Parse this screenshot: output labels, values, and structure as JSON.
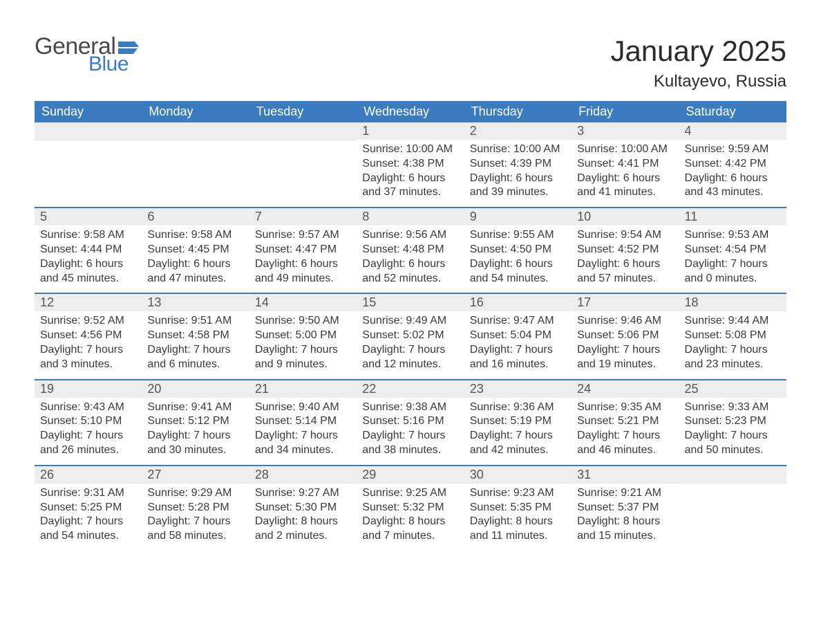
{
  "brand": {
    "word1": "General",
    "word2": "Blue",
    "flag_color": "#3b7bbf",
    "text_color_gray": "#4a4a4a"
  },
  "header": {
    "month_title": "January 2025",
    "location": "Kultayevo, Russia"
  },
  "colors": {
    "header_bg": "#3b7bbf",
    "header_text": "#ffffff",
    "daynum_bg": "#ededed",
    "week_divider": "#3b7bbf",
    "body_text": "#3a3a3a",
    "page_bg": "#ffffff"
  },
  "typography": {
    "title_fontsize": 42,
    "location_fontsize": 24,
    "weekday_fontsize": 18,
    "daynum_fontsize": 18,
    "body_fontsize": 16,
    "font_family": "Arial"
  },
  "calendar": {
    "type": "table",
    "weekdays": [
      "Sunday",
      "Monday",
      "Tuesday",
      "Wednesday",
      "Thursday",
      "Friday",
      "Saturday"
    ],
    "weeks": [
      [
        null,
        null,
        null,
        {
          "n": "1",
          "sunrise": "Sunrise: 10:00 AM",
          "sunset": "Sunset: 4:38 PM",
          "daylight": "Daylight: 6 hours and 37 minutes."
        },
        {
          "n": "2",
          "sunrise": "Sunrise: 10:00 AM",
          "sunset": "Sunset: 4:39 PM",
          "daylight": "Daylight: 6 hours and 39 minutes."
        },
        {
          "n": "3",
          "sunrise": "Sunrise: 10:00 AM",
          "sunset": "Sunset: 4:41 PM",
          "daylight": "Daylight: 6 hours and 41 minutes."
        },
        {
          "n": "4",
          "sunrise": "Sunrise: 9:59 AM",
          "sunset": "Sunset: 4:42 PM",
          "daylight": "Daylight: 6 hours and 43 minutes."
        }
      ],
      [
        {
          "n": "5",
          "sunrise": "Sunrise: 9:58 AM",
          "sunset": "Sunset: 4:44 PM",
          "daylight": "Daylight: 6 hours and 45 minutes."
        },
        {
          "n": "6",
          "sunrise": "Sunrise: 9:58 AM",
          "sunset": "Sunset: 4:45 PM",
          "daylight": "Daylight: 6 hours and 47 minutes."
        },
        {
          "n": "7",
          "sunrise": "Sunrise: 9:57 AM",
          "sunset": "Sunset: 4:47 PM",
          "daylight": "Daylight: 6 hours and 49 minutes."
        },
        {
          "n": "8",
          "sunrise": "Sunrise: 9:56 AM",
          "sunset": "Sunset: 4:48 PM",
          "daylight": "Daylight: 6 hours and 52 minutes."
        },
        {
          "n": "9",
          "sunrise": "Sunrise: 9:55 AM",
          "sunset": "Sunset: 4:50 PM",
          "daylight": "Daylight: 6 hours and 54 minutes."
        },
        {
          "n": "10",
          "sunrise": "Sunrise: 9:54 AM",
          "sunset": "Sunset: 4:52 PM",
          "daylight": "Daylight: 6 hours and 57 minutes."
        },
        {
          "n": "11",
          "sunrise": "Sunrise: 9:53 AM",
          "sunset": "Sunset: 4:54 PM",
          "daylight": "Daylight: 7 hours and 0 minutes."
        }
      ],
      [
        {
          "n": "12",
          "sunrise": "Sunrise: 9:52 AM",
          "sunset": "Sunset: 4:56 PM",
          "daylight": "Daylight: 7 hours and 3 minutes."
        },
        {
          "n": "13",
          "sunrise": "Sunrise: 9:51 AM",
          "sunset": "Sunset: 4:58 PM",
          "daylight": "Daylight: 7 hours and 6 minutes."
        },
        {
          "n": "14",
          "sunrise": "Sunrise: 9:50 AM",
          "sunset": "Sunset: 5:00 PM",
          "daylight": "Daylight: 7 hours and 9 minutes."
        },
        {
          "n": "15",
          "sunrise": "Sunrise: 9:49 AM",
          "sunset": "Sunset: 5:02 PM",
          "daylight": "Daylight: 7 hours and 12 minutes."
        },
        {
          "n": "16",
          "sunrise": "Sunrise: 9:47 AM",
          "sunset": "Sunset: 5:04 PM",
          "daylight": "Daylight: 7 hours and 16 minutes."
        },
        {
          "n": "17",
          "sunrise": "Sunrise: 9:46 AM",
          "sunset": "Sunset: 5:06 PM",
          "daylight": "Daylight: 7 hours and 19 minutes."
        },
        {
          "n": "18",
          "sunrise": "Sunrise: 9:44 AM",
          "sunset": "Sunset: 5:08 PM",
          "daylight": "Daylight: 7 hours and 23 minutes."
        }
      ],
      [
        {
          "n": "19",
          "sunrise": "Sunrise: 9:43 AM",
          "sunset": "Sunset: 5:10 PM",
          "daylight": "Daylight: 7 hours and 26 minutes."
        },
        {
          "n": "20",
          "sunrise": "Sunrise: 9:41 AM",
          "sunset": "Sunset: 5:12 PM",
          "daylight": "Daylight: 7 hours and 30 minutes."
        },
        {
          "n": "21",
          "sunrise": "Sunrise: 9:40 AM",
          "sunset": "Sunset: 5:14 PM",
          "daylight": "Daylight: 7 hours and 34 minutes."
        },
        {
          "n": "22",
          "sunrise": "Sunrise: 9:38 AM",
          "sunset": "Sunset: 5:16 PM",
          "daylight": "Daylight: 7 hours and 38 minutes."
        },
        {
          "n": "23",
          "sunrise": "Sunrise: 9:36 AM",
          "sunset": "Sunset: 5:19 PM",
          "daylight": "Daylight: 7 hours and 42 minutes."
        },
        {
          "n": "24",
          "sunrise": "Sunrise: 9:35 AM",
          "sunset": "Sunset: 5:21 PM",
          "daylight": "Daylight: 7 hours and 46 minutes."
        },
        {
          "n": "25",
          "sunrise": "Sunrise: 9:33 AM",
          "sunset": "Sunset: 5:23 PM",
          "daylight": "Daylight: 7 hours and 50 minutes."
        }
      ],
      [
        {
          "n": "26",
          "sunrise": "Sunrise: 9:31 AM",
          "sunset": "Sunset: 5:25 PM",
          "daylight": "Daylight: 7 hours and 54 minutes."
        },
        {
          "n": "27",
          "sunrise": "Sunrise: 9:29 AM",
          "sunset": "Sunset: 5:28 PM",
          "daylight": "Daylight: 7 hours and 58 minutes."
        },
        {
          "n": "28",
          "sunrise": "Sunrise: 9:27 AM",
          "sunset": "Sunset: 5:30 PM",
          "daylight": "Daylight: 8 hours and 2 minutes."
        },
        {
          "n": "29",
          "sunrise": "Sunrise: 9:25 AM",
          "sunset": "Sunset: 5:32 PM",
          "daylight": "Daylight: 8 hours and 7 minutes."
        },
        {
          "n": "30",
          "sunrise": "Sunrise: 9:23 AM",
          "sunset": "Sunset: 5:35 PM",
          "daylight": "Daylight: 8 hours and 11 minutes."
        },
        {
          "n": "31",
          "sunrise": "Sunrise: 9:21 AM",
          "sunset": "Sunset: 5:37 PM",
          "daylight": "Daylight: 8 hours and 15 minutes."
        },
        null
      ]
    ]
  }
}
